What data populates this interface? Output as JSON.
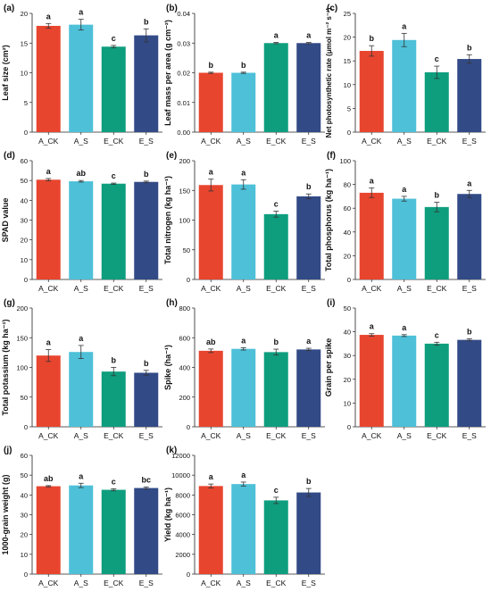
{
  "colors": [
    "#E8452F",
    "#4EC0D8",
    "#0E9E7E",
    "#324A86"
  ],
  "chart_data": [
    {
      "type": "bar",
      "panel_label": "(a)",
      "ylabel": "Leaf size (cm²)",
      "categories": [
        "A_CK",
        "A_S",
        "E_CK",
        "E_S"
      ],
      "values": [
        17.9,
        18.1,
        14.4,
        16.3
      ],
      "errors": [
        0.4,
        0.9,
        0.2,
        1.1
      ],
      "letters": [
        "a",
        "a",
        "c",
        "b"
      ],
      "ylim": [
        0,
        20
      ],
      "yticks": [
        "0",
        "5",
        "10",
        "15",
        "20"
      ]
    },
    {
      "type": "bar",
      "panel_label": "(b)",
      "ylabel": "Leaf mass per area (g cm⁻²)",
      "categories": [
        "A_CK",
        "A_S",
        "E_CK",
        "E_S"
      ],
      "values": [
        0.02,
        0.02,
        0.03,
        0.03
      ],
      "errors": [
        0.0002,
        0.0002,
        0.0002,
        0.0002
      ],
      "letters": [
        "b",
        "b",
        "a",
        "a"
      ],
      "ylim": [
        0,
        0.04
      ],
      "yticks": [
        "0.00",
        "0.01",
        "0.02",
        "0.03",
        "0.04"
      ]
    },
    {
      "type": "bar",
      "panel_label": "(c)",
      "ylabel": "Net photosynthetic rate (μmol m⁻² s⁻¹)",
      "categories": [
        "A_CK",
        "A_S",
        "E_CK",
        "E_S"
      ],
      "values": [
        17.1,
        19.4,
        12.6,
        15.4
      ],
      "errors": [
        1.1,
        1.4,
        1.3,
        0.9
      ],
      "letters": [
        "b",
        "a",
        "c",
        "b"
      ],
      "ylim": [
        0,
        25
      ],
      "yticks": [
        "0",
        "5",
        "10",
        "15",
        "20",
        "25"
      ]
    },
    {
      "type": "bar",
      "panel_label": "(d)",
      "ylabel": "SPAD value",
      "categories": [
        "A_CK",
        "A_S",
        "E_CK",
        "E_S"
      ],
      "values": [
        50.4,
        49.6,
        48.4,
        49.3
      ],
      "errors": [
        0.6,
        0.4,
        0.3,
        0.4
      ],
      "letters": [
        "a",
        "ab",
        "c",
        "b"
      ],
      "ylim": [
        0,
        60
      ],
      "yticks": [
        "0",
        "10",
        "20",
        "30",
        "40",
        "50",
        "60"
      ]
    },
    {
      "type": "bar",
      "panel_label": "(e)",
      "ylabel": "Total nitrogen (kg ha⁻¹)",
      "categories": [
        "A_CK",
        "A_S",
        "E_CK",
        "E_S"
      ],
      "values": [
        159,
        160,
        110,
        140
      ],
      "errors": [
        10,
        8,
        5,
        4
      ],
      "letters": [
        "a",
        "a",
        "c",
        "b"
      ],
      "ylim": [
        0,
        200
      ],
      "yticks": [
        "0",
        "50",
        "100",
        "150",
        "200"
      ]
    },
    {
      "type": "bar",
      "panel_label": "(f)",
      "ylabel": "Total phosphorus (kg ha⁻¹)",
      "categories": [
        "A_CK",
        "A_S",
        "E_CK",
        "E_S"
      ],
      "values": [
        73,
        68,
        61,
        72
      ],
      "errors": [
        4,
        2,
        4,
        3
      ],
      "letters": [
        "a",
        "a",
        "b",
        "a"
      ],
      "ylim": [
        0,
        100
      ],
      "yticks": [
        "0",
        "20",
        "40",
        "60",
        "80",
        "100"
      ]
    },
    {
      "type": "bar",
      "panel_label": "(g)",
      "ylabel": "Total potassium (kg ha⁻¹)",
      "categories": [
        "A_CK",
        "A_S",
        "E_CK",
        "E_S"
      ],
      "values": [
        120,
        126,
        93,
        91
      ],
      "errors": [
        10,
        11,
        7,
        4
      ],
      "letters": [
        "a",
        "a",
        "b",
        "b"
      ],
      "ylim": [
        0,
        200
      ],
      "yticks": [
        "0",
        "50",
        "100",
        "150",
        "200"
      ]
    },
    {
      "type": "bar",
      "panel_label": "(h)",
      "ylabel": "Spike (ha⁻¹)",
      "categories": [
        "A_CK",
        "A_S",
        "E_CK",
        "E_S"
      ],
      "values": [
        512,
        525,
        503,
        521
      ],
      "errors": [
        12,
        8,
        20,
        8
      ],
      "letters": [
        "ab",
        "a",
        "b",
        "a"
      ],
      "ylim": [
        0,
        800
      ],
      "yticks": [
        "0",
        "200",
        "400",
        "600",
        "800"
      ]
    },
    {
      "type": "bar",
      "panel_label": "(i)",
      "ylabel": "Grain per spike",
      "categories": [
        "A_CK",
        "A_S",
        "E_CK",
        "E_S"
      ],
      "values": [
        38.7,
        38.4,
        35.0,
        36.6
      ],
      "errors": [
        0.5,
        0.4,
        0.6,
        0.4
      ],
      "letters": [
        "a",
        "a",
        "c",
        "b"
      ],
      "ylim": [
        0,
        50
      ],
      "yticks": [
        "0",
        "10",
        "20",
        "30",
        "40",
        "50"
      ]
    },
    {
      "type": "bar",
      "panel_label": "(j)",
      "ylabel": "1000-grain weight (g)",
      "categories": [
        "A_CK",
        "A_S",
        "E_CK",
        "E_S"
      ],
      "values": [
        44.4,
        44.8,
        42.6,
        43.5
      ],
      "errors": [
        0.3,
        1.1,
        0.5,
        0.5
      ],
      "letters": [
        "ab",
        "a",
        "c",
        "bc"
      ],
      "ylim": [
        0,
        60
      ],
      "yticks": [
        "0",
        "10",
        "20",
        "30",
        "40",
        "50",
        "60"
      ]
    },
    {
      "type": "bar",
      "panel_label": "(k)",
      "ylabel": "Yield (kg ha⁻¹)",
      "categories": [
        "A_CK",
        "A_S",
        "E_CK",
        "E_S"
      ],
      "values": [
        8900,
        9100,
        7450,
        8250
      ],
      "errors": [
        200,
        200,
        320,
        400
      ],
      "letters": [
        "a",
        "a",
        "c",
        "b"
      ],
      "ylim": [
        0,
        12000
      ],
      "yticks": [
        "0",
        "2000",
        "4000",
        "6000",
        "8000",
        "10000",
        "12000"
      ]
    }
  ]
}
